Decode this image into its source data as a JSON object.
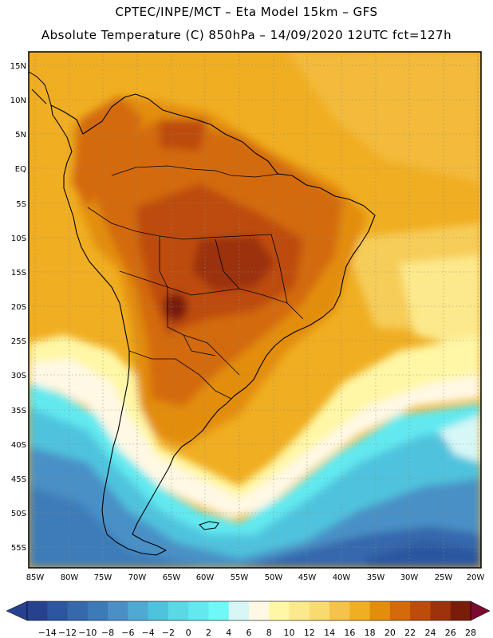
{
  "header": {
    "line1": "CPTEC/INPE/MCT –  Eta Model 15km – GFS",
    "line2": "Absolute Temperature (C) 850hPa – 14/09/2020 12UTC fct=127h"
  },
  "map": {
    "lat_labels": [
      "15N",
      "10N",
      "5N",
      "EQ",
      "5S",
      "10S",
      "15S",
      "20S",
      "25S",
      "30S",
      "35S",
      "40S",
      "45S",
      "50S",
      "55S"
    ],
    "lon_labels": [
      "85W",
      "80W",
      "75W",
      "70W",
      "65W",
      "60W",
      "55W",
      "50W",
      "45W",
      "40W",
      "35W",
      "30W",
      "25W",
      "20W"
    ]
  },
  "colorbar": {
    "labels": [
      "-14",
      "-12",
      "-10",
      "-8",
      "-6",
      "-4",
      "-2",
      "0",
      "2",
      "4",
      "6",
      "8",
      "10",
      "12",
      "14",
      "16",
      "18",
      "20",
      "22",
      "24",
      "26",
      "28"
    ],
    "colors": [
      "#27418f",
      "#2c56a0",
      "#3668ac",
      "#3d7bb8",
      "#4a90c6",
      "#4fa9d2",
      "#4fc3dd",
      "#5ad8e6",
      "#62e9f0",
      "#6ff8f5",
      "#d7f7f7",
      "#fff8e4",
      "#fff7a6",
      "#fce98c",
      "#f9da6f",
      "#f5c24c",
      "#f0ae22",
      "#e38d0d",
      "#d36b0c",
      "#bd4b0a",
      "#9c330b",
      "#7a1c0a"
    ],
    "under_color": "#27418f",
    "over_color": "#7a0a30"
  }
}
